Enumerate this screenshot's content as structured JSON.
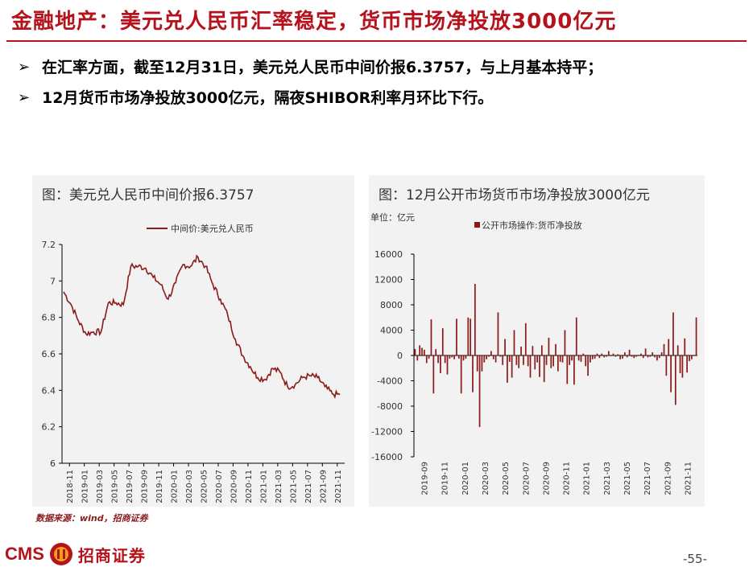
{
  "slide": {
    "title": "金融地产：美元兑人民币汇率稳定，货币市场净投放3000亿元",
    "bullets": [
      "在汇率方面，截至12月31日，美元兑人民币中间价报6.3757，与上月基本持平；",
      "12月货币市场净投放3000亿元，隔夜SHIBOR利率月环比下行。"
    ],
    "bullet_marker": "➢",
    "source": "数据来源：wind，招商证券",
    "logo_latin": "CMS",
    "logo_cn": "招商证券",
    "page_number": "-55-",
    "colors": {
      "title": "#b5121b",
      "series": "#8b1a1a",
      "panel_bg": "#f2f2f2"
    }
  },
  "chart_data": [
    {
      "type": "line",
      "title": "图：美元兑人民币中间价报6.3757",
      "legend": [
        "中间价:美元兑人民币"
      ],
      "legend_position": "top",
      "ylim": [
        6,
        7.2
      ],
      "y_ticks": [
        "7.2",
        "7",
        "6.8",
        "6.6",
        "6.4",
        "6.2",
        "6"
      ],
      "x_ticks": [
        "2018-11",
        "2019-01",
        "2019-03",
        "2019-05",
        "2019-07",
        "2019-09",
        "2019-11",
        "2020-01",
        "2020-03",
        "2020-05",
        "2020-07",
        "2020-09",
        "2020-11",
        "2021-01",
        "2021-03",
        "2021-05",
        "2021-07",
        "2021-09",
        "2021-11"
      ],
      "series": [
        {
          "name": "中间价:美元兑人民币",
          "x": [
            "2018-11",
            "2018-12",
            "2019-01",
            "2019-02",
            "2019-03",
            "2019-04",
            "2019-05",
            "2019-06",
            "2019-07",
            "2019-08",
            "2019-09",
            "2019-10",
            "2019-11",
            "2019-12",
            "2020-01",
            "2020-02",
            "2020-03",
            "2020-04",
            "2020-05",
            "2020-06",
            "2020-07",
            "2020-08",
            "2020-09",
            "2020-10",
            "2020-11",
            "2020-12",
            "2021-01",
            "2021-02",
            "2021-03",
            "2021-04",
            "2021-05",
            "2021-06",
            "2021-07",
            "2021-08",
            "2021-09",
            "2021-10",
            "2021-11",
            "2021-12"
          ],
          "values": [
            6.94,
            6.87,
            6.78,
            6.71,
            6.72,
            6.72,
            6.88,
            6.88,
            6.87,
            7.08,
            7.08,
            7.07,
            7.02,
            6.98,
            6.9,
            6.99,
            7.09,
            7.08,
            7.13,
            7.08,
            6.98,
            6.9,
            6.81,
            6.68,
            6.59,
            6.53,
            6.47,
            6.46,
            6.52,
            6.5,
            6.42,
            6.43,
            6.47,
            6.48,
            6.47,
            6.42,
            6.38,
            6.3757
          ]
        }
      ],
      "grid": false
    },
    {
      "type": "bar",
      "title": "图：12月公开市场货币市场净投放3000亿元",
      "unit_label": "单位：亿元",
      "legend": [
        "公开市场操作:货币净投放"
      ],
      "legend_position": "top",
      "ylim": [
        -16000,
        16000
      ],
      "y_ticks": [
        "16000",
        "12000",
        "8000",
        "4000",
        "0",
        "-4000",
        "-8000",
        "-12000",
        "-16000"
      ],
      "x_ticks": [
        "2019-09",
        "2019-11",
        "2020-01",
        "2020-03",
        "2020-05",
        "2020-07",
        "2020-09",
        "2020-11",
        "2021-01",
        "2021-03",
        "2021-05",
        "2021-07",
        "2021-09",
        "2021-11"
      ],
      "series": [
        {
          "name": "公开市场操作:货币净投放",
          "values": [
            1000,
            -800,
            1600,
            1200,
            900,
            -1200,
            -500,
            5700,
            -6000,
            1000,
            -1200,
            -2800,
            4300,
            -1200,
            -3000,
            -500,
            -300,
            -600,
            5800,
            -500,
            -6000,
            -800,
            -500,
            6000,
            5800,
            -5800,
            11300,
            -2500,
            -11300,
            -2500,
            -1100,
            -600,
            -200,
            700,
            -600,
            -1100,
            6800,
            -200,
            -1500,
            2600,
            -4300,
            -1000,
            -3500,
            4000,
            -1500,
            -2000,
            1400,
            -1500,
            5100,
            -1700,
            -3500,
            1500,
            -2200,
            -1100,
            -3400,
            1600,
            -4200,
            -1500,
            2800,
            -2000,
            -1700,
            1800,
            -2500,
            -1000,
            -1100,
            4000,
            -4500,
            -1500,
            -800,
            -4600,
            6000,
            -800,
            -1000,
            300,
            -1700,
            -3200,
            -1100,
            -600,
            -500,
            300,
            -400,
            300,
            -300,
            -200,
            700,
            -100,
            300,
            -200,
            200,
            -600,
            -500,
            500,
            -300,
            900,
            -200,
            -400,
            -200,
            100,
            300,
            -400,
            1100,
            -300,
            -200,
            500,
            -300,
            -800,
            -400,
            500,
            1800,
            -3200,
            2600,
            -5800,
            6800,
            -7800,
            1600,
            -2800,
            -3500,
            2700,
            -2700,
            -900,
            -600,
            -100,
            6000
          ]
        }
      ],
      "grid": false
    }
  ]
}
